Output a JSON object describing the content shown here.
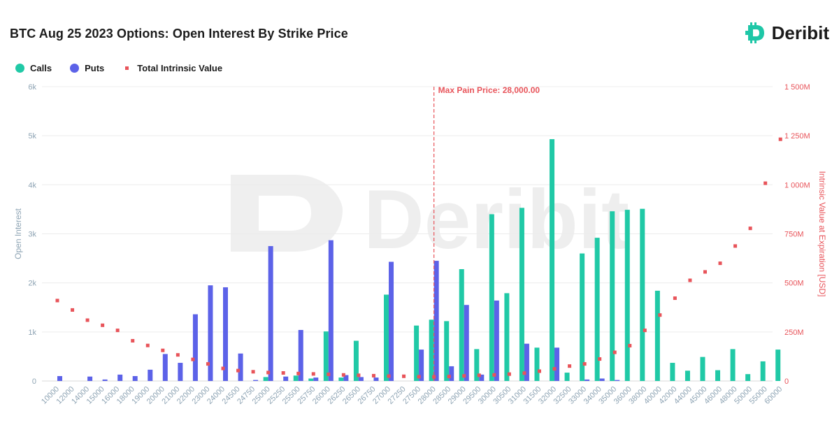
{
  "title": "BTC Aug 25 2023 Options: Open Interest By Strike Price",
  "brand": {
    "name": "Deribit",
    "icon": "deribit-logo-icon",
    "color": "#1ec7a7"
  },
  "watermark": "Deribit",
  "legend": [
    {
      "label": "Calls",
      "color": "#20c9a6",
      "shape": "circle"
    },
    {
      "label": "Puts",
      "color": "#5c62e8",
      "shape": "circle"
    },
    {
      "label": "Total Intrinsic Value",
      "color": "#e8545a",
      "shape": "square"
    }
  ],
  "chart_data": {
    "type": "bar",
    "title": "BTC Aug 25 2023 Options: Open Interest By Strike Price",
    "ylabel": "Open Interest",
    "y2label": "Intrinsic Value at Expiration [USD]",
    "ylim": [
      0,
      6000
    ],
    "y2lim": [
      0,
      1500
    ],
    "yticks": [
      "0",
      "1k",
      "2k",
      "3k",
      "4k",
      "5k",
      "6k"
    ],
    "y2ticks": [
      "0",
      "250M",
      "500M",
      "750M",
      "1 000M",
      "1 250M",
      "1 500M"
    ],
    "grid": true,
    "legend_position": "top-left",
    "annotation": {
      "label": "Max Pain Price: 28,000.00",
      "category": "28000"
    },
    "categories": [
      "10000",
      "12000",
      "14000",
      "15000",
      "16000",
      "18000",
      "19000",
      "20000",
      "21000",
      "22000",
      "23000",
      "24000",
      "24500",
      "24750",
      "25000",
      "25250",
      "25500",
      "25750",
      "26000",
      "26250",
      "26500",
      "26750",
      "27000",
      "27250",
      "27500",
      "28000",
      "28500",
      "29000",
      "29500",
      "30000",
      "30500",
      "31000",
      "31500",
      "32000",
      "32500",
      "33000",
      "34000",
      "35000",
      "36000",
      "38000",
      "40000",
      "42000",
      "44000",
      "45000",
      "46000",
      "48000",
      "50000",
      "55000",
      "60000"
    ],
    "series": [
      {
        "name": "Calls",
        "type": "bar",
        "color": "#20c9a6",
        "values": [
          0,
          0,
          0,
          0,
          0,
          0,
          0,
          0,
          0,
          0,
          0,
          0,
          0,
          0,
          80,
          0,
          110,
          50,
          1010,
          70,
          820,
          0,
          1760,
          0,
          1130,
          1250,
          1220,
          2280,
          650,
          3400,
          1790,
          3530,
          680,
          4930,
          170,
          2600,
          2920,
          3460,
          3490,
          3510,
          1840,
          370,
          210,
          490,
          220,
          650,
          140,
          400,
          640
        ]
      },
      {
        "name": "Puts",
        "type": "bar",
        "color": "#5c62e8",
        "values": [
          100,
          0,
          90,
          30,
          130,
          100,
          230,
          550,
          370,
          1360,
          1950,
          1910,
          560,
          20,
          2750,
          90,
          1040,
          70,
          2870,
          120,
          80,
          70,
          2430,
          0,
          640,
          2450,
          300,
          1550,
          130,
          1640,
          0,
          760,
          0,
          680,
          0,
          30,
          50,
          20,
          0,
          0,
          0,
          0,
          0,
          0,
          0,
          0,
          0,
          0,
          0
        ]
      },
      {
        "name": "Total Intrinsic Value",
        "type": "scatter",
        "axis": "y2",
        "color": "#e8545a",
        "values": [
          410,
          362,
          310,
          284,
          258,
          205,
          181,
          156,
          133,
          110,
          87,
          64,
          53,
          47,
          43,
          41,
          38,
          36,
          34,
          31,
          29,
          27,
          25,
          24,
          22,
          21,
          23,
          26,
          29,
          31,
          35,
          40,
          50,
          62,
          76,
          87,
          112,
          146,
          180,
          258,
          336,
          422,
          513,
          556,
          600,
          688,
          778,
          1008,
          1232
        ]
      }
    ]
  }
}
